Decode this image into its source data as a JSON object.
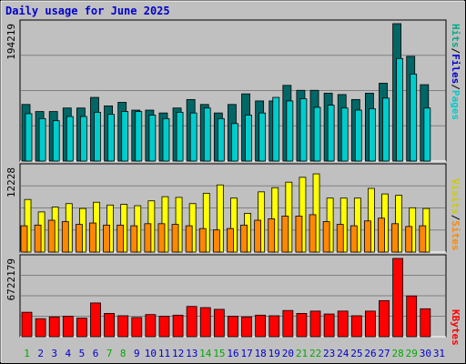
{
  "chart_data": {
    "type": "bar",
    "title": "Daily usage for June 2025",
    "days": [
      "1",
      "2",
      "3",
      "4",
      "5",
      "6",
      "7",
      "8",
      "9",
      "10",
      "11",
      "12",
      "13",
      "14",
      "15",
      "16",
      "17",
      "18",
      "19",
      "20",
      "21",
      "22",
      "23",
      "24",
      "25",
      "26",
      "27",
      "28",
      "29",
      "30",
      "31"
    ],
    "weekend_days": [
      "1",
      "7",
      "8",
      "14",
      "15",
      "21",
      "22",
      "28",
      "29"
    ],
    "panels": [
      {
        "id": "hits_files_pages",
        "max_label": "194219",
        "ymax": 194219,
        "series": [
          {
            "name": "Hits",
            "color": "#006666",
            "values": [
              80000,
              70000,
              70000,
              75000,
              75000,
              90000,
              78000,
              83000,
              72000,
              72000,
              68000,
              75000,
              87000,
              80000,
              68000,
              80000,
              95000,
              85000,
              85000,
              107000,
              100000,
              100000,
              96000,
              94000,
              87000,
              96000,
              110000,
              194219,
              148000,
              108000,
              0
            ]
          },
          {
            "name": "Files",
            "color": "#0000cc",
            "values": [
              0,
              0,
              0,
              0,
              0,
              0,
              0,
              0,
              0,
              0,
              0,
              0,
              0,
              0,
              0,
              0,
              0,
              0,
              0,
              0,
              0,
              0,
              0,
              0,
              0,
              0,
              0,
              0,
              0,
              0,
              0
            ]
          },
          {
            "name": "Pages",
            "color": "#00cccc",
            "values": [
              67000,
              60000,
              57000,
              63000,
              63000,
              69000,
              66000,
              70000,
              70000,
              65000,
              60000,
              69000,
              68000,
              75000,
              60000,
              53000,
              65000,
              68000,
              90000,
              85000,
              88000,
              76000,
              79000,
              75000,
              72000,
              74000,
              89000,
              145000,
              123000,
              75000,
              0
            ]
          }
        ]
      },
      {
        "id": "visits_sites",
        "max_label": "12228",
        "ymax": 12228,
        "series": [
          {
            "name": "Visits",
            "color": "#ffff00",
            "values": [
              7600,
              5800,
              6500,
              7000,
              6300,
              7200,
              6800,
              6900,
              6700,
              7400,
              8000,
              7900,
              7000,
              8500,
              9700,
              7800,
              5600,
              8700,
              9300,
              10100,
              10800,
              11300,
              7800,
              7800,
              7800,
              9200,
              8400,
              8200,
              6400,
              6300,
              0
            ]
          },
          {
            "name": "Sites",
            "color": "#ff8800",
            "values": [
              3800,
              3900,
              4600,
              4400,
              4000,
              4200,
              3900,
              3900,
              3800,
              4100,
              4100,
              4000,
              3800,
              3400,
              3200,
              3400,
              3900,
              4600,
              4800,
              5200,
              5200,
              5400,
              4400,
              4000,
              3800,
              4500,
              4900,
              4100,
              3700,
              3800,
              0
            ]
          }
        ]
      },
      {
        "id": "kbytes",
        "max_label": "6722179",
        "ymax": 6722179,
        "series": [
          {
            "name": "KBytes",
            "color": "#ff0000",
            "values": [
              2100000,
              1550000,
              1700000,
              1750000,
              1600000,
              2900000,
              2000000,
              1800000,
              1650000,
              1900000,
              1750000,
              1850000,
              2600000,
              2500000,
              2350000,
              1750000,
              1700000,
              1850000,
              1800000,
              2250000,
              2000000,
              2200000,
              1950000,
              2200000,
              1800000,
              2200000,
              3100000,
              6722179,
              3500000,
              2400000,
              0
            ]
          }
        ]
      }
    ]
  },
  "colors": {
    "background": "#c0c0c0",
    "plot_background": "#c0c0c0",
    "title": "#0000cc",
    "weekday_tick": "#0000cc",
    "weekend_tick": "#00aa00",
    "separator": "#000000",
    "gridline": "#808080"
  },
  "legends": {
    "panel1": [
      {
        "text": "Hits",
        "color": "#00aa88"
      },
      {
        "text": "/",
        "color": "#000000"
      },
      {
        "text": "Files",
        "color": "#0000cc"
      },
      {
        "text": "/",
        "color": "#000000"
      },
      {
        "text": "Pages",
        "color": "#00cccc"
      }
    ],
    "panel2": [
      {
        "text": "Visits",
        "color": "#cccc00"
      },
      {
        "text": "/",
        "color": "#000000"
      },
      {
        "text": "Sites",
        "color": "#ff8800"
      }
    ],
    "panel3": [
      {
        "text": "KBytes",
        "color": "#ff0000"
      }
    ]
  }
}
